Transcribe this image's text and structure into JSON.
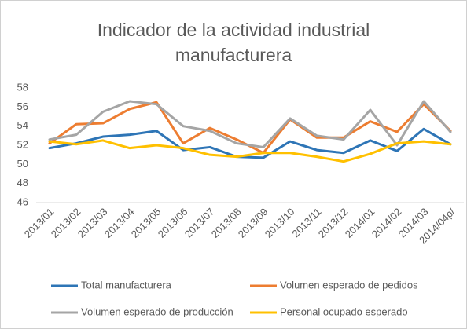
{
  "chart_data": {
    "type": "line",
    "title": "Indicador de la actividad industrial manufacturera",
    "categories": [
      "2013/01",
      "2013/02",
      "2013/03",
      "2013/04",
      "2013/05",
      "2013/06",
      "2013/07",
      "2013/08",
      "2013/09",
      "2013/10",
      "2013/11",
      "2013/12",
      "2014/01",
      "2014/02",
      "2014/03",
      "2014/04p/"
    ],
    "series": [
      {
        "name": "Total manufacturera",
        "color": "#2e75b6",
        "values": [
          51.7,
          52.2,
          52.9,
          53.1,
          53.5,
          51.5,
          51.8,
          50.8,
          50.7,
          52.4,
          51.5,
          51.2,
          52.5,
          51.4,
          53.7,
          52.1
        ]
      },
      {
        "name": "Volumen esperado de pedidos",
        "color": "#ed7d31",
        "values": [
          52.2,
          54.2,
          54.3,
          55.8,
          56.5,
          52.2,
          53.8,
          52.6,
          51.2,
          54.7,
          52.8,
          52.8,
          54.5,
          53.4,
          56.3,
          53.5
        ]
      },
      {
        "name": "Volumen esperado de producción",
        "color": "#a5a5a5",
        "values": [
          52.6,
          53.1,
          55.5,
          56.6,
          56.3,
          54.0,
          53.5,
          52.2,
          51.8,
          54.8,
          53.0,
          52.6,
          55.7,
          52.0,
          56.6,
          53.4
        ]
      },
      {
        "name": "Personal ocupado esperado",
        "color": "#ffc000",
        "values": [
          52.4,
          52.1,
          52.5,
          51.7,
          52.0,
          51.7,
          51.0,
          50.8,
          51.2,
          51.2,
          50.8,
          50.3,
          51.1,
          52.2,
          52.4,
          52.1
        ]
      }
    ],
    "ylim": [
      46,
      58
    ],
    "yticks": [
      46,
      48,
      50,
      52,
      54,
      56,
      58
    ],
    "grid": false,
    "legend": "bottom"
  }
}
